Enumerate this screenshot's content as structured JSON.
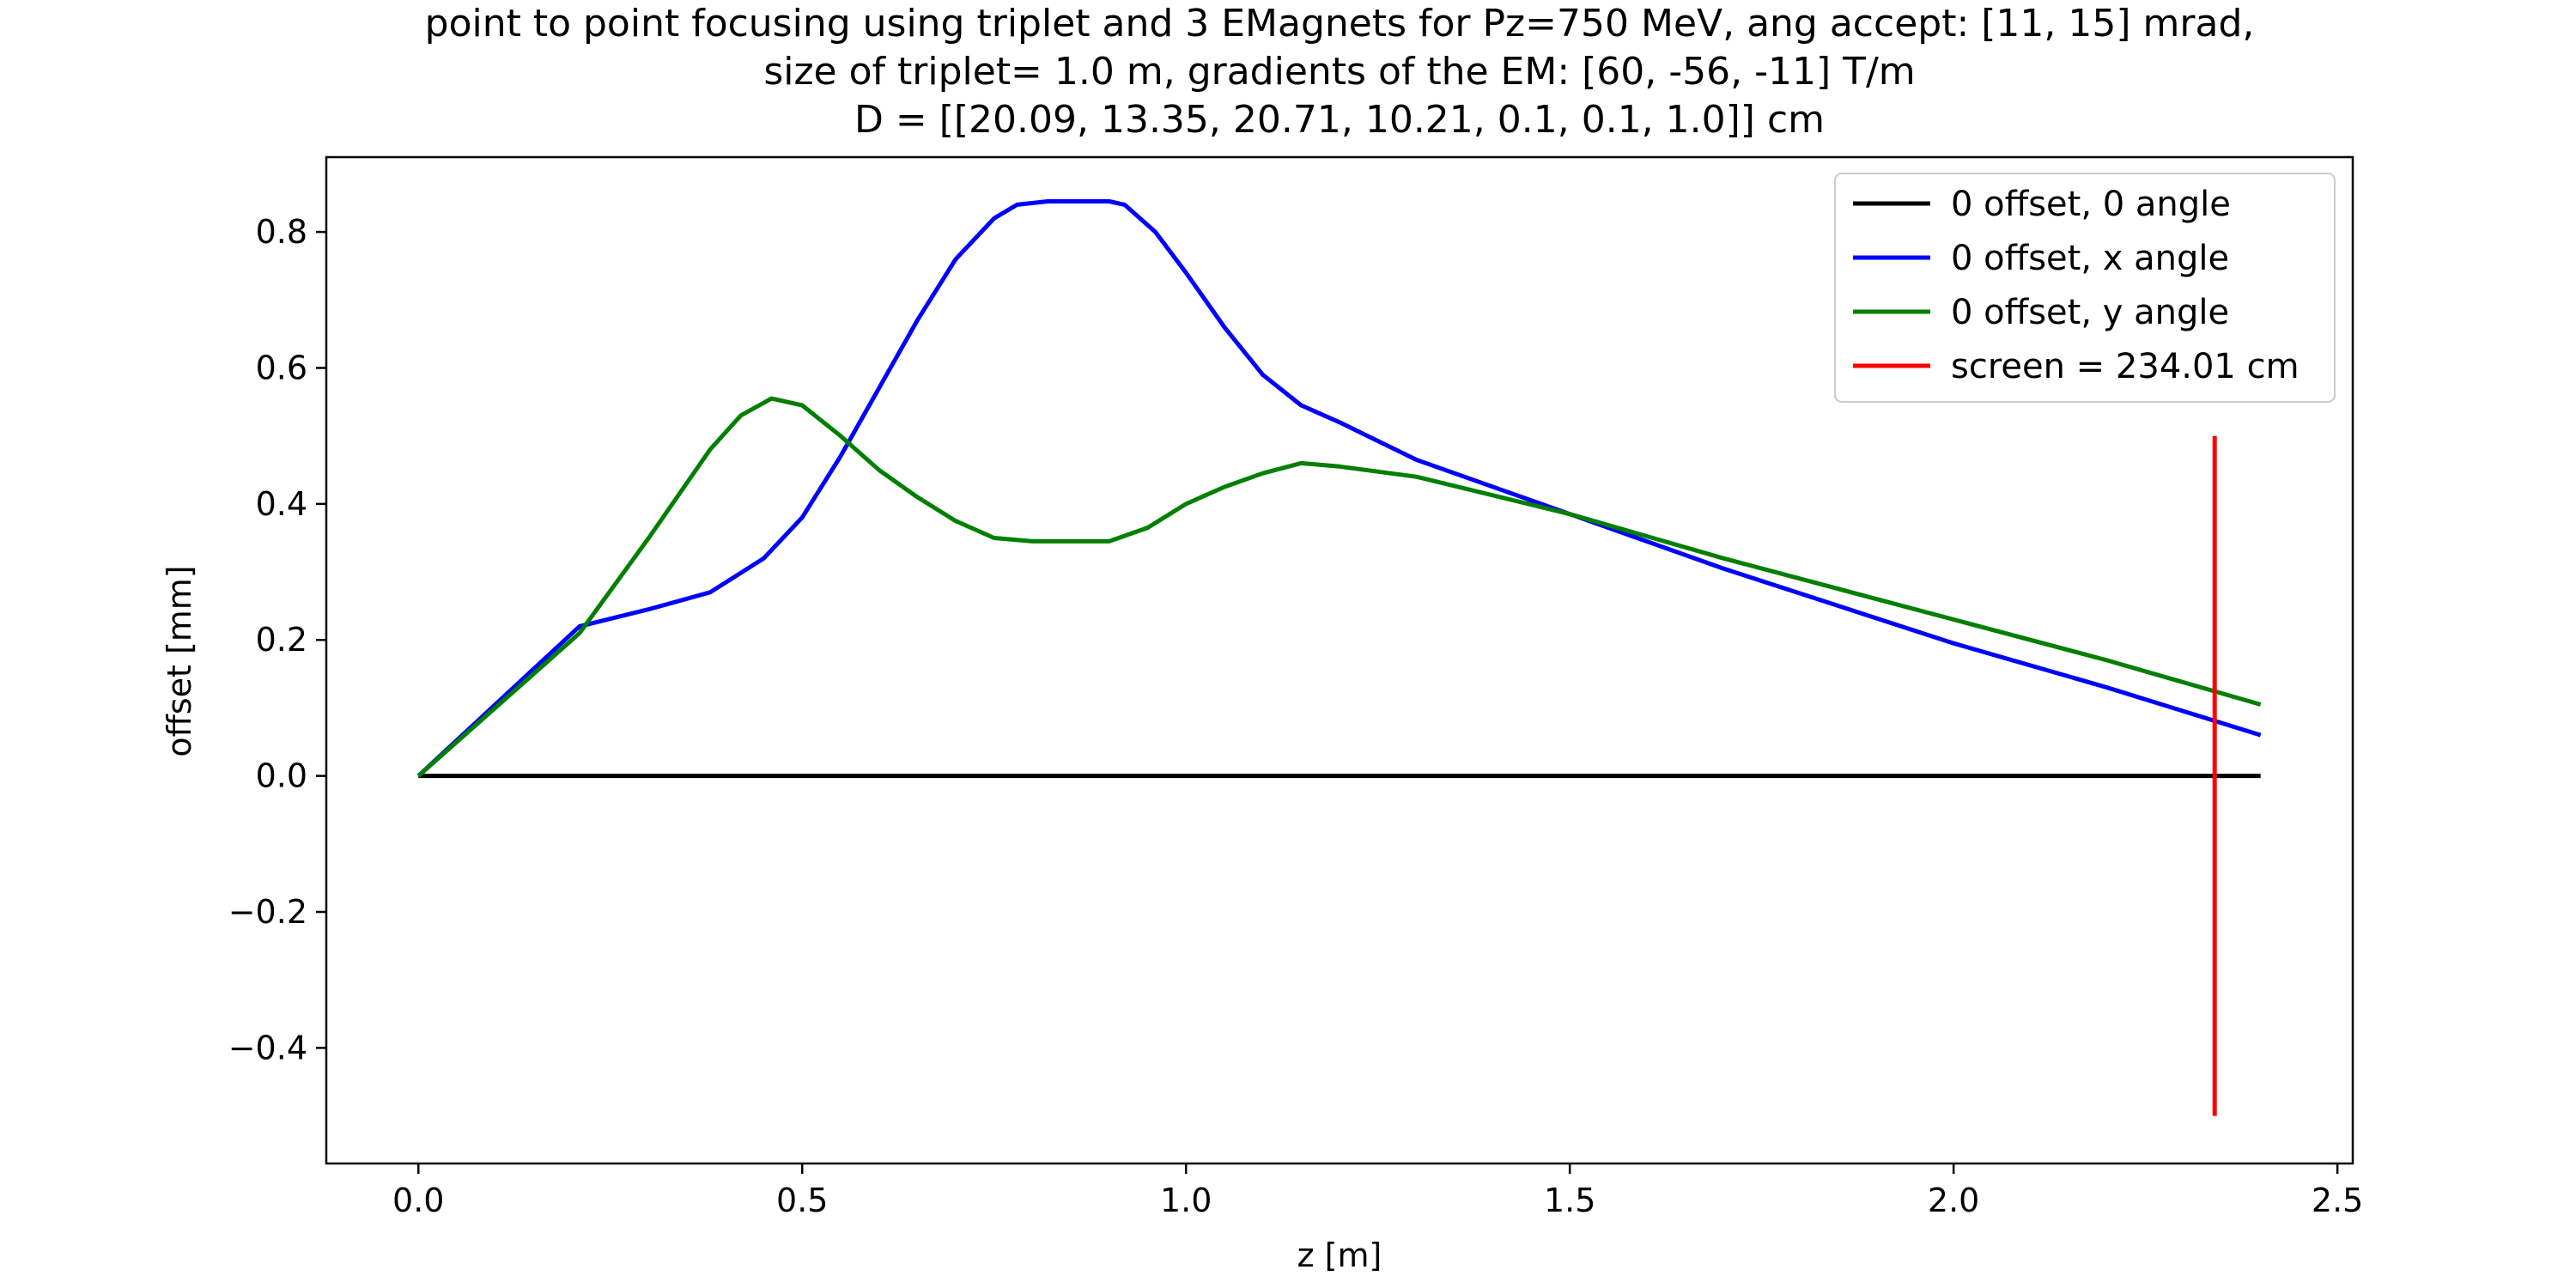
{
  "chart_data": {
    "type": "line",
    "title_lines": [
      "point to point focusing using triplet and 3 EMagnets for Pz=750 MeV, ang accept: [11, 15] mrad,",
      "size of triplet= 1.0 m, gradients of the EM: [60, -56, -11] T/m",
      "D = [[20.09, 13.35, 20.71, 10.21, 0.1, 0.1, 1.0]] cm"
    ],
    "xlabel": "z [m]",
    "ylabel": "offset [mm]",
    "xlim": [
      -0.12,
      2.52
    ],
    "ylim": [
      -0.57,
      0.91
    ],
    "xticks": [
      0.0,
      0.5,
      1.0,
      1.5,
      2.0,
      2.5
    ],
    "xtick_labels": [
      "0.0",
      "0.5",
      "1.0",
      "1.5",
      "2.0",
      "2.5"
    ],
    "yticks": [
      -0.4,
      -0.2,
      0.0,
      0.2,
      0.4,
      0.6,
      0.8
    ],
    "ytick_labels": [
      "−0.4",
      "−0.2",
      "0.0",
      "0.2",
      "0.4",
      "0.6",
      "0.8"
    ],
    "grid": false,
    "legend_position": "top-right",
    "series": [
      {
        "name": "0 offset, 0 angle",
        "color": "#000000",
        "x": [
          0.0,
          2.4
        ],
        "y": [
          0.0,
          0.0
        ]
      },
      {
        "name": "0 offset, x angle",
        "color": "#0000ff",
        "x": [
          0.0,
          0.21,
          0.3,
          0.38,
          0.45,
          0.5,
          0.55,
          0.6,
          0.65,
          0.7,
          0.75,
          0.78,
          0.82,
          0.86,
          0.9,
          0.92,
          0.96,
          1.0,
          1.05,
          1.1,
          1.15,
          1.2,
          1.3,
          1.5,
          1.7,
          2.0,
          2.2,
          2.4
        ],
        "y": [
          0.0,
          0.22,
          0.245,
          0.27,
          0.32,
          0.38,
          0.47,
          0.57,
          0.67,
          0.76,
          0.82,
          0.84,
          0.845,
          0.845,
          0.845,
          0.84,
          0.8,
          0.74,
          0.66,
          0.59,
          0.545,
          0.52,
          0.465,
          0.385,
          0.305,
          0.195,
          0.13,
          0.06
        ]
      },
      {
        "name": "0 offset, y angle",
        "color": "#007f00",
        "x": [
          0.0,
          0.21,
          0.3,
          0.38,
          0.42,
          0.46,
          0.5,
          0.55,
          0.6,
          0.65,
          0.7,
          0.75,
          0.8,
          0.85,
          0.9,
          0.95,
          1.0,
          1.05,
          1.1,
          1.15,
          1.2,
          1.3,
          1.5,
          1.7,
          2.0,
          2.2,
          2.4
        ],
        "y": [
          0.0,
          0.21,
          0.35,
          0.48,
          0.53,
          0.555,
          0.545,
          0.5,
          0.45,
          0.41,
          0.375,
          0.35,
          0.345,
          0.345,
          0.345,
          0.365,
          0.4,
          0.425,
          0.445,
          0.46,
          0.455,
          0.44,
          0.385,
          0.32,
          0.23,
          0.17,
          0.105
        ]
      },
      {
        "name": "screen = 234.01 cm",
        "color": "#ff0000",
        "x": [
          2.3401,
          2.3401
        ],
        "y": [
          -0.5,
          0.5
        ]
      }
    ]
  }
}
